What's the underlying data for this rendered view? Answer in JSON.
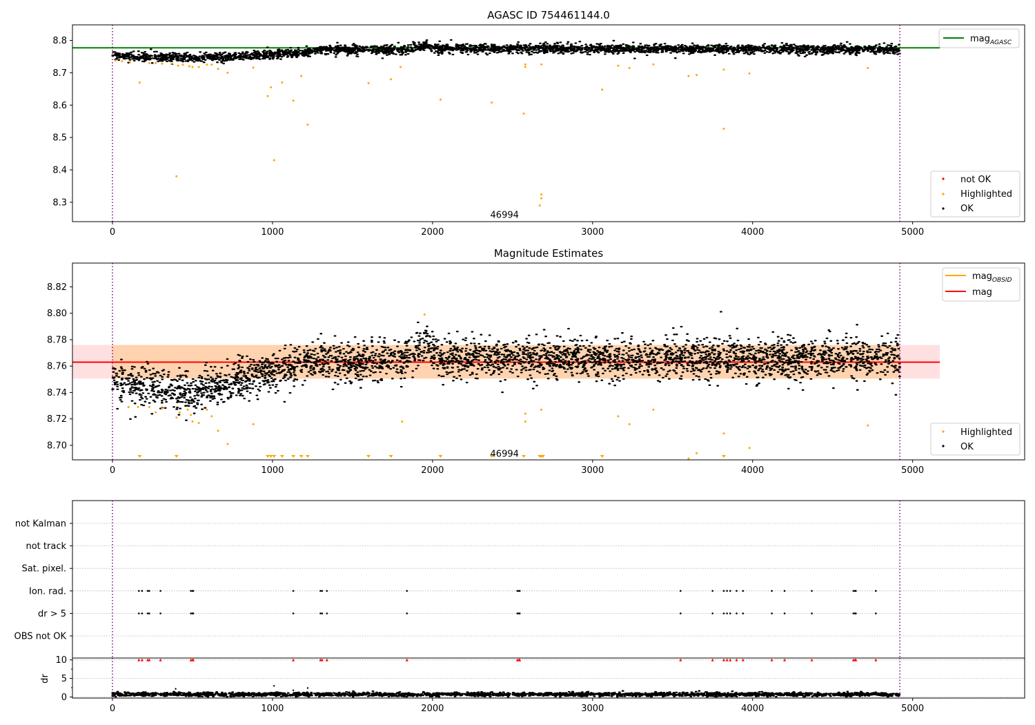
{
  "chart_data": [
    {
      "type": "scatter",
      "title": "AGASC ID 754461144.0",
      "xlim": [
        -250,
        5700
      ],
      "ylim": [
        8.24,
        8.848
      ],
      "x_ticks": [
        0,
        1000,
        2000,
        3000,
        4000,
        5000
      ],
      "x_tick_labels": [
        "0",
        "1000",
        "2000",
        "3000",
        "4000",
        "5000"
      ],
      "y_ticks": [
        8.3,
        8.4,
        8.5,
        8.6,
        8.7,
        8.8
      ],
      "y_tick_labels": [
        "8.3",
        "8.4",
        "8.5",
        "8.6",
        "8.7",
        "8.8"
      ],
      "vlines": [
        0,
        4920
      ],
      "annotation": {
        "text": "46994",
        "x": 2450,
        "y": 8.262
      },
      "hline": {
        "name": "mag_AGASC",
        "y": 8.777,
        "x_range": [
          -250,
          5170
        ],
        "color": "#008000"
      },
      "legend_lines": [
        {
          "label": "mag",
          "sub": "AGASC",
          "color": "#008000"
        }
      ],
      "legend_markers": [
        {
          "label": "not OK",
          "color": "#ff0000"
        },
        {
          "label": "Highlighted",
          "color": "#ffa500"
        },
        {
          "label": "OK",
          "color": "#000000"
        }
      ],
      "series": [
        {
          "name": "OK",
          "color": "#000000",
          "x_range": [
            0,
            4920
          ],
          "trend": [
            [
              0,
              8.752
            ],
            [
              500,
              8.745
            ],
            [
              800,
              8.752
            ],
            [
              1200,
              8.762
            ],
            [
              1300,
              8.771
            ],
            [
              1850,
              8.772
            ],
            [
              1950,
              8.785
            ],
            [
              2050,
              8.775
            ],
            [
              4920,
              8.772
            ]
          ],
          "spread": 0.007
        },
        {
          "name": "Highlighted",
          "color": "#ffa500",
          "points": [
            [
              20,
              8.738
            ],
            [
              60,
              8.736
            ],
            [
              110,
              8.733
            ],
            [
              170,
              8.67
            ],
            [
              230,
              8.73
            ],
            [
              270,
              8.73
            ],
            [
              310,
              8.728
            ],
            [
              370,
              8.728
            ],
            [
              400,
              8.38
            ],
            [
              410,
              8.722
            ],
            [
              440,
              8.725
            ],
            [
              480,
              8.72
            ],
            [
              500,
              8.718
            ],
            [
              540,
              8.718
            ],
            [
              590,
              8.725
            ],
            [
              620,
              8.725
            ],
            [
              660,
              8.712
            ],
            [
              720,
              8.7
            ],
            [
              880,
              8.716
            ],
            [
              970,
              8.628
            ],
            [
              990,
              8.655
            ],
            [
              1010,
              8.43
            ],
            [
              1060,
              8.67
            ],
            [
              1130,
              8.614
            ],
            [
              1180,
              8.69
            ],
            [
              1220,
              8.54
            ],
            [
              1600,
              8.668
            ],
            [
              1740,
              8.68
            ],
            [
              1800,
              8.718
            ],
            [
              2050,
              8.617
            ],
            [
              2370,
              8.608
            ],
            [
              2570,
              8.574
            ],
            [
              2580,
              8.718
            ],
            [
              2580,
              8.726
            ],
            [
              2670,
              8.29
            ],
            [
              2680,
              8.312
            ],
            [
              2680,
              8.324
            ],
            [
              2680,
              8.726
            ],
            [
              3060,
              8.648
            ],
            [
              3160,
              8.722
            ],
            [
              3230,
              8.715
            ],
            [
              3380,
              8.726
            ],
            [
              3600,
              8.69
            ],
            [
              3650,
              8.693
            ],
            [
              3820,
              8.71
            ],
            [
              3820,
              8.527
            ],
            [
              3980,
              8.698
            ],
            [
              4720,
              8.715
            ]
          ]
        }
      ]
    },
    {
      "type": "scatter",
      "title": "Magnitude Estimates",
      "xlim": [
        -250,
        5700
      ],
      "ylim": [
        8.689,
        8.838
      ],
      "x_ticks": [
        0,
        1000,
        2000,
        3000,
        4000,
        5000
      ],
      "x_tick_labels": [
        "0",
        "1000",
        "2000",
        "3000",
        "4000",
        "5000"
      ],
      "y_ticks": [
        8.7,
        8.72,
        8.74,
        8.76,
        8.78,
        8.8,
        8.82
      ],
      "y_tick_labels": [
        "8.70",
        "8.72",
        "8.74",
        "8.76",
        "8.78",
        "8.80",
        "8.82"
      ],
      "vlines": [
        0,
        4920
      ],
      "annotation": {
        "text": "46994",
        "x": 2450,
        "y": 8.694
      },
      "mag": 8.763,
      "mag_band": [
        8.7505,
        8.776
      ],
      "mag_obsid_band": [
        8.7505,
        8.776
      ],
      "legend_lines": [
        {
          "label": "mag",
          "sub": "OBSID",
          "color": "#ffa500"
        },
        {
          "label": "mag",
          "sub": "",
          "color": "#ff0000"
        }
      ],
      "legend_markers": [
        {
          "label": "Highlighted",
          "color": "#ffa500"
        },
        {
          "label": "OK",
          "color": "#000000"
        }
      ],
      "series": [
        {
          "name": "OK",
          "color": "#000000",
          "x_range": [
            0,
            4920
          ],
          "trend": [
            [
              0,
              8.748
            ],
            [
              200,
              8.745
            ],
            [
              500,
              8.739
            ],
            [
              700,
              8.746
            ],
            [
              1000,
              8.757
            ],
            [
              1300,
              8.763
            ],
            [
              1850,
              8.765
            ],
            [
              1950,
              8.78
            ],
            [
              2050,
              8.766
            ],
            [
              4920,
              8.766
            ]
          ],
          "spread": 0.0075
        },
        {
          "name": "Highlighted",
          "color": "#ffa500",
          "points": [
            [
              100,
              8.729
            ],
            [
              160,
              8.729
            ],
            [
              230,
              8.729
            ],
            [
              270,
              8.725
            ],
            [
              310,
              8.728
            ],
            [
              400,
              8.721
            ],
            [
              420,
              8.725
            ],
            [
              470,
              8.727
            ],
            [
              490,
              8.723
            ],
            [
              500,
              8.718
            ],
            [
              540,
              8.717
            ],
            [
              590,
              8.727
            ],
            [
              620,
              8.722
            ],
            [
              660,
              8.711
            ],
            [
              720,
              8.701
            ],
            [
              880,
              8.716
            ],
            [
              1810,
              8.718
            ],
            [
              1950,
              8.799
            ],
            [
              2580,
              8.718
            ],
            [
              2580,
              8.724
            ],
            [
              2680,
              8.727
            ],
            [
              3160,
              8.722
            ],
            [
              3230,
              8.716
            ],
            [
              3380,
              8.727
            ],
            [
              3600,
              8.69
            ],
            [
              3650,
              8.694
            ],
            [
              3820,
              8.709
            ],
            [
              3980,
              8.698
            ],
            [
              4720,
              8.715
            ]
          ]
        },
        {
          "name": "Highlighted (below range)",
          "color": "#ffa500",
          "x_values": [
            170,
            400,
            970,
            990,
            1010,
            1060,
            1130,
            1180,
            1220,
            1600,
            1740,
            2050,
            2370,
            2570,
            2670,
            2680,
            2690,
            3060,
            3820
          ]
        }
      ]
    },
    {
      "type": "scatter",
      "xlim": [
        -250,
        5700
      ],
      "vlines": [
        0,
        4920
      ],
      "flag_labels": [
        "not Kalman",
        "not track",
        "Sat. pixel.",
        "Ion. rad.",
        "dr > 5",
        "OBS not OK"
      ],
      "flags": {
        "Ion. rad.": [
          165,
          185,
          220,
          230,
          300,
          490,
          500,
          505,
          1130,
          1300,
          1310,
          1340,
          1840,
          2530,
          2540,
          2545,
          3550,
          3750,
          3820,
          3840,
          3860,
          3900,
          3940,
          4120,
          4200,
          4370,
          4630,
          4640,
          4645,
          4770
        ],
        "dr > 5": [
          165,
          185,
          220,
          230,
          300,
          490,
          500,
          505,
          1130,
          1300,
          1310,
          1340,
          1840,
          2530,
          2540,
          2545,
          3550,
          3750,
          3820,
          3840,
          3860,
          3900,
          3940,
          4120,
          4200,
          4370,
          4630,
          4640,
          4645,
          4770
        ]
      }
    },
    {
      "type": "scatter",
      "ylabel": "dr",
      "xlim": [
        -250,
        5700
      ],
      "ylim": [
        -0.3,
        10.5
      ],
      "x_ticks": [
        0,
        1000,
        2000,
        3000,
        4000,
        5000
      ],
      "x_tick_labels": [
        "0",
        "1000",
        "2000",
        "3000",
        "4000",
        "5000"
      ],
      "y_ticks": [
        0,
        5,
        10
      ],
      "y_tick_labels": [
        "0",
        "5",
        "10"
      ],
      "vlines": [
        0,
        4920
      ],
      "series": [
        {
          "name": "dr",
          "color": "#000000",
          "x_range": [
            0,
            4920
          ],
          "base": 0.7,
          "spread": 0.45
        },
        {
          "name": "dr (extra)",
          "color": "#000000",
          "points": [
            [
              395,
              2.2
            ],
            [
              1010,
              3.0
            ],
            [
              1130,
              1.8
            ],
            [
              1220,
              2.4
            ]
          ]
        },
        {
          "name": "dr > 10",
          "color": "#ff0000",
          "x_values": [
            165,
            185,
            220,
            230,
            300,
            490,
            500,
            505,
            1130,
            1300,
            1310,
            1340,
            1840,
            2530,
            2540,
            2545,
            3550,
            3750,
            3820,
            3840,
            3860,
            3900,
            3940,
            4120,
            4200,
            4370,
            4630,
            4640,
            4645,
            4770
          ]
        }
      ]
    }
  ]
}
